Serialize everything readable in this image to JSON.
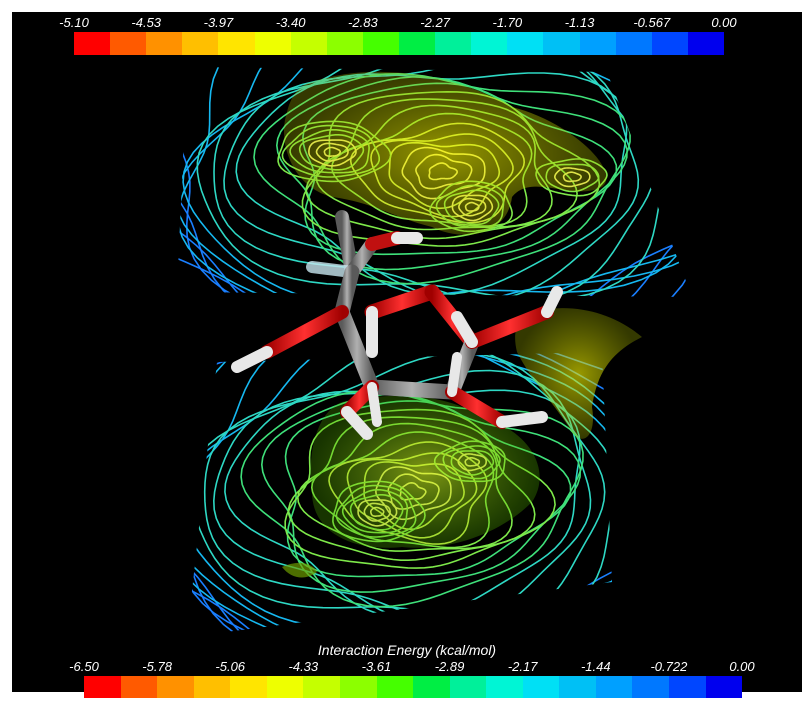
{
  "top_scale": {
    "ticks": [
      "-5.10",
      "-4.53",
      "-3.97",
      "-3.40",
      "-2.83",
      "-2.27",
      "-1.70",
      "-1.13",
      "-0.567",
      "0.00"
    ],
    "colors": [
      "#ff0000",
      "#ff5a00",
      "#ff9100",
      "#ffbf00",
      "#ffe500",
      "#eeff00",
      "#c5ff00",
      "#8cff00",
      "#45ff00",
      "#00ee44",
      "#00f09a",
      "#00f5d5",
      "#00e0f5",
      "#00c0f5",
      "#00a0ff",
      "#0078ff",
      "#0046ff",
      "#0000ee"
    ]
  },
  "bottom_scale": {
    "title": "Interaction Energy (kcal/mol)",
    "ticks": [
      "-6.50",
      "-5.78",
      "-5.06",
      "-4.33",
      "-3.61",
      "-2.89",
      "-2.17",
      "-1.44",
      "-0.722",
      "0.00"
    ],
    "colors": [
      "#ff0000",
      "#ff5a00",
      "#ff9100",
      "#ffbf00",
      "#ffe500",
      "#eeff00",
      "#c5ff00",
      "#8cff00",
      "#45ff00",
      "#00ee44",
      "#00f09a",
      "#00f5d5",
      "#00e0f5",
      "#00c0f5",
      "#00a0ff",
      "#0078ff",
      "#0046ff",
      "#0000ee"
    ]
  },
  "scene": {
    "background": "#000000",
    "contour_colors": [
      "#1a7fff",
      "#16b8f0",
      "#2ed8c4",
      "#3fe07a",
      "#7ee84a",
      "#c8ee4a",
      "#f0f070"
    ],
    "surface_color": "#e6e600",
    "atom_colors": {
      "carbon": "#808080",
      "oxygen": "#e01010",
      "hydrogen": "#f0f0f0"
    }
  }
}
